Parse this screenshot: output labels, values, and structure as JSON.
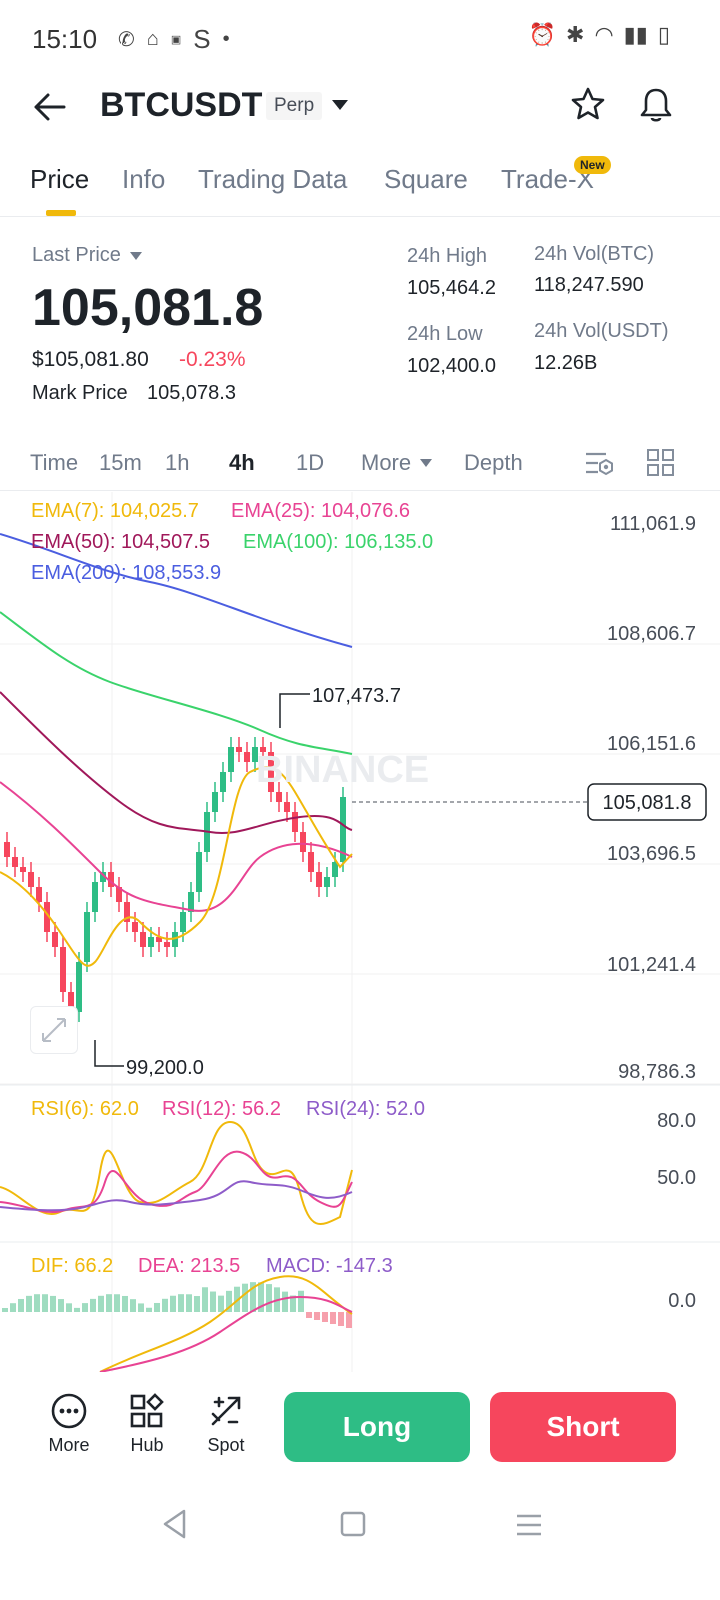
{
  "status_bar": {
    "time": "15:10",
    "carrier_glyph": "S",
    "dot": "•"
  },
  "header": {
    "symbol": "BTCUSDT",
    "badge": "Perp"
  },
  "tabs": [
    {
      "label": "Price",
      "active": true
    },
    {
      "label": "Info"
    },
    {
      "label": "Trading Data"
    },
    {
      "label": "Square"
    },
    {
      "label": "Trade-X",
      "badge": "New"
    }
  ],
  "ticker": {
    "last_price_label": "Last Price",
    "last_price": "105,081.8",
    "fiat_price": "$105,081.80",
    "change": "-0.23%",
    "mark_price_label": "Mark Price",
    "mark_price": "105,078.3",
    "high_label": "24h High",
    "high": "105,464.2",
    "low_label": "24h Low",
    "low": "102,400.0",
    "vol_btc_label": "24h Vol(BTC)",
    "vol_btc": "118,247.590",
    "vol_usdt_label": "24h Vol(USDT)",
    "vol_usdt": "12.26B"
  },
  "intervals": [
    {
      "label": "Time"
    },
    {
      "label": "15m"
    },
    {
      "label": "1h"
    },
    {
      "label": "4h",
      "active": true
    },
    {
      "label": "1D"
    },
    {
      "label": "More"
    },
    {
      "label": "Depth"
    }
  ],
  "indicators": {
    "ema7": "EMA(7): 104,025.7",
    "ema25": "EMA(25): 104,076.6",
    "ema50": "EMA(50): 104,507.5",
    "ema100": "EMA(100): 106,135.0",
    "ema200": "EMA(200): 108,553.9",
    "rsi6": "RSI(6): 62.0",
    "rsi12": "RSI(12): 56.2",
    "rsi24": "RSI(24): 52.0",
    "dif": "DIF: 66.2",
    "dea": "DEA: 213.5",
    "macd": "MACD: -147.3"
  },
  "chart_data": {
    "type": "candlestick",
    "price_axis": [
      "111,061.9",
      "108,606.7",
      "106,151.6",
      "103,696.5",
      "101,241.4",
      "98,786.3"
    ],
    "current_price_tag": "105,081.8",
    "high_marker": "107,473.7",
    "low_marker": "99,200.0",
    "watermark": "BINANCE",
    "rsi_axis": [
      "80.0",
      "50.0"
    ],
    "macd_axis": [
      "0.0"
    ],
    "colors": {
      "up": "#2ebd85",
      "down": "#f6465d",
      "ema7": "#f0b90b",
      "ema25": "#e84393",
      "ema50": "#a0185a",
      "ema100": "#3ad36b",
      "ema200": "#4b5ee0",
      "rsi24": "#8e5cc9"
    }
  },
  "bottom_bar": {
    "more": "More",
    "hub": "Hub",
    "spot": "Spot",
    "long": "Long",
    "short": "Short"
  }
}
